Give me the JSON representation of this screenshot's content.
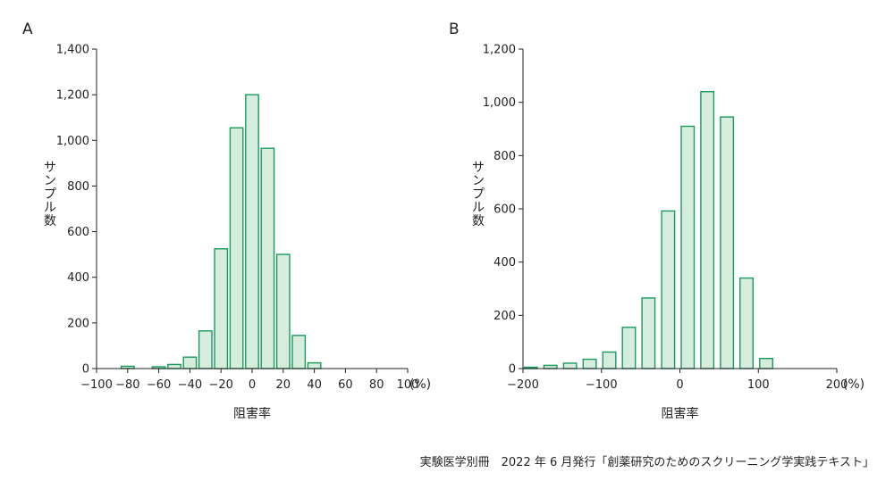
{
  "chart_data": [
    {
      "panel": "A",
      "type": "bar",
      "xlabel": "阻害率",
      "ylabel": "サンプル数",
      "unit": "(%)",
      "xlim": [
        -100,
        100
      ],
      "ylim": [
        0,
        1400
      ],
      "xticks": [
        -100,
        -80,
        -60,
        -40,
        -20,
        0,
        20,
        40,
        60,
        80,
        100
      ],
      "xtick_labels": [
        "−100",
        "−80",
        "−60",
        "−40",
        "−20",
        "0",
        "20",
        "40",
        "60",
        "80",
        "100"
      ],
      "yticks": [
        0,
        200,
        400,
        600,
        800,
        1000,
        1200,
        1400
      ],
      "ytick_labels": [
        "0",
        "200",
        "400",
        "600",
        "800",
        "1,000",
        "1,200",
        "1,400"
      ],
      "bin_width": 10,
      "bin_centers": [
        -80,
        -60,
        -50,
        -40,
        -30,
        -20,
        -10,
        0,
        10,
        20,
        30,
        40
      ],
      "values": [
        10,
        8,
        18,
        50,
        165,
        525,
        1055,
        1200,
        965,
        500,
        145,
        25
      ],
      "color": "#d6ecdd",
      "edge_color": "#1a9b5e"
    },
    {
      "panel": "B",
      "type": "bar",
      "xlabel": "阻害率",
      "ylabel": "サンプル数",
      "unit": "(%)",
      "xlim": [
        -200,
        200
      ],
      "ylim": [
        0,
        1200
      ],
      "xticks": [
        -200,
        -100,
        0,
        100,
        200
      ],
      "xtick_labels": [
        "−200",
        "−100",
        "0",
        "100",
        "200"
      ],
      "yticks": [
        0,
        200,
        400,
        600,
        800,
        1000,
        1200
      ],
      "ytick_labels": [
        "0",
        "200",
        "400",
        "600",
        "800",
        "1,000",
        "1,200"
      ],
      "bin_width": 20,
      "bin_centers": [
        -190,
        -165,
        -140,
        -115,
        -90,
        -65,
        -40,
        -15,
        10,
        35,
        60,
        85,
        110
      ],
      "values": [
        5,
        12,
        20,
        35,
        62,
        155,
        265,
        592,
        910,
        1040,
        945,
        340,
        38
      ],
      "color": "#d6ecdd",
      "edge_color": "#1a9b5e"
    }
  ],
  "footer": "実験医学別冊　2022 年 6 月発行「創薬研究のためのスクリーニング学実践テキスト」"
}
